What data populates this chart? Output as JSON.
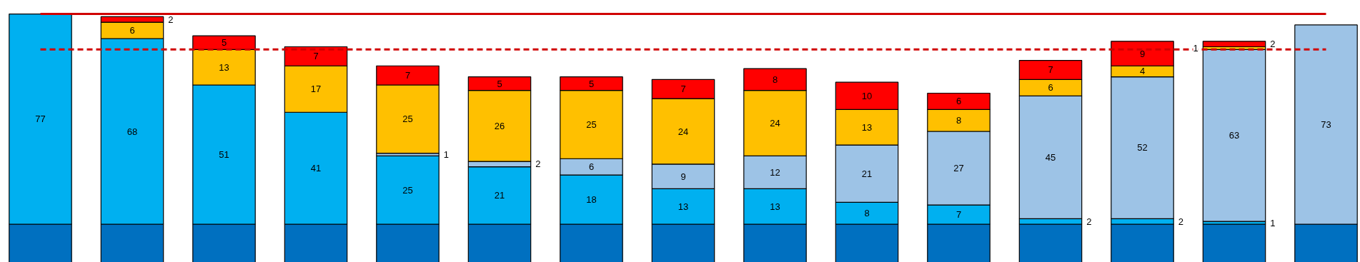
{
  "chart_data": {
    "type": "bar",
    "stacked": true,
    "categories": [
      null,
      null,
      null,
      null,
      null,
      null,
      null,
      null,
      null,
      null,
      null,
      null,
      null,
      null,
      null
    ],
    "ylim": [
      0,
      96
    ],
    "series": [
      {
        "color": "#0070c0",
        "values": [
          14,
          14,
          14,
          14,
          14,
          14,
          14,
          14,
          14,
          14,
          14,
          14,
          14,
          14,
          14
        ],
        "value_labels": [
          null,
          null,
          null,
          null,
          null,
          null,
          null,
          null,
          null,
          null,
          null,
          null,
          null,
          null,
          null
        ]
      },
      {
        "color": "#00b0f0",
        "values": [
          77,
          68,
          51,
          41,
          25,
          21,
          18,
          13,
          13,
          8,
          7,
          2,
          2,
          1,
          null
        ],
        "value_labels": [
          "77",
          "68",
          "51",
          "41",
          "25",
          "21",
          "18",
          "13",
          "13",
          "8",
          "7",
          "2",
          "2",
          "1",
          null
        ]
      },
      {
        "color": "#9dc3e6",
        "values": [
          null,
          null,
          null,
          null,
          1,
          2,
          6,
          9,
          12,
          21,
          27,
          45,
          52,
          63,
          73
        ],
        "value_labels": [
          null,
          null,
          null,
          null,
          "1",
          "2",
          "6",
          "9",
          "12",
          "21",
          "27",
          "45",
          "52",
          "63",
          "73"
        ]
      },
      {
        "color": "#ffc000",
        "values": [
          null,
          6,
          13,
          17,
          25,
          26,
          25,
          24,
          24,
          13,
          8,
          6,
          4,
          1,
          null
        ],
        "value_labels": [
          null,
          "6",
          "13",
          "17",
          "25",
          "26",
          "25",
          "24",
          "24",
          "13",
          "8",
          "6",
          "4",
          "1",
          null
        ]
      },
      {
        "color": "#ff0000",
        "values": [
          null,
          2,
          5,
          7,
          7,
          5,
          5,
          7,
          8,
          10,
          6,
          7,
          9,
          2,
          null
        ],
        "value_labels": [
          null,
          "2",
          "5",
          "7",
          "7",
          "5",
          "5",
          "7",
          "8",
          "10",
          "6",
          "7",
          "9",
          "2",
          null
        ]
      }
    ],
    "ref_lines": [
      {
        "axis": "y",
        "value": 91,
        "color": "#d00000",
        "line_style": "solid"
      },
      {
        "axis": "y",
        "value": 78,
        "color": "#d00000",
        "line_style": "dashed"
      }
    ],
    "tick_labels": false
  }
}
